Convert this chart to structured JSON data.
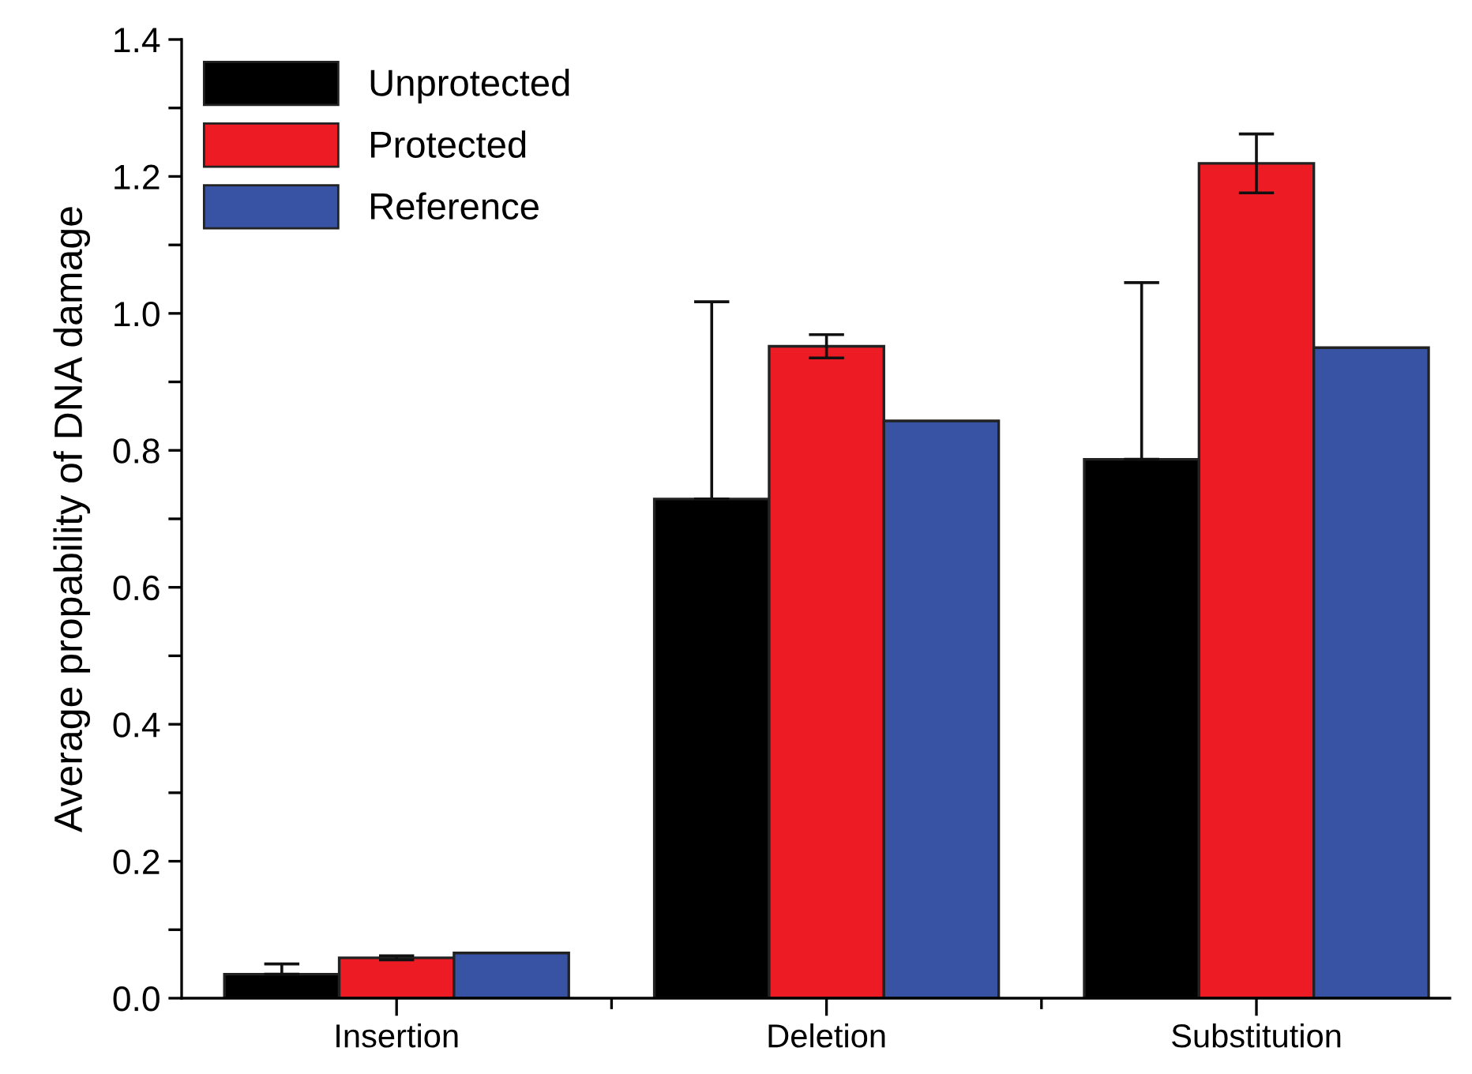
{
  "chart_data": {
    "type": "bar",
    "ylabel": "Average propability of DNA damage",
    "categories": [
      "Insertion",
      "Deletion",
      "Substitution"
    ],
    "series": [
      {
        "name": "Unprotected",
        "color": "#000000",
        "values": [
          0.035,
          0.729,
          0.787
        ],
        "errors": [
          [
            0.035,
            0.05
          ],
          [
            0.729,
            1.017
          ],
          [
            0.787,
            1.045
          ]
        ]
      },
      {
        "name": "Protected",
        "color": "#ed1c24",
        "values": [
          0.059,
          0.952,
          1.219
        ],
        "errors": [
          0.003,
          0.017,
          0.043
        ]
      },
      {
        "name": "Reference",
        "color": "#3953a4",
        "values": [
          0.066,
          0.843,
          0.95
        ]
      }
    ],
    "ylim": [
      0,
      1.4
    ],
    "yticks": [
      {
        "value": 0.0,
        "label": "0.0"
      },
      {
        "value": 0.1,
        "label": null
      },
      {
        "value": 0.2,
        "label": "0.2"
      },
      {
        "value": 0.3,
        "label": null
      },
      {
        "value": 0.4,
        "label": "0.4"
      },
      {
        "value": 0.5,
        "label": null
      },
      {
        "value": 0.6,
        "label": "0.6"
      },
      {
        "value": 0.7,
        "label": null
      },
      {
        "value": 0.8,
        "label": "0.8"
      },
      {
        "value": 0.9,
        "label": null
      },
      {
        "value": 1.0,
        "label": "1.0"
      },
      {
        "value": 1.1,
        "label": null
      },
      {
        "value": 1.2,
        "label": "1.2"
      },
      {
        "value": 1.3,
        "label": null
      },
      {
        "value": 1.4,
        "label": "1.4"
      }
    ],
    "legend": "top left",
    "grid": false
  }
}
